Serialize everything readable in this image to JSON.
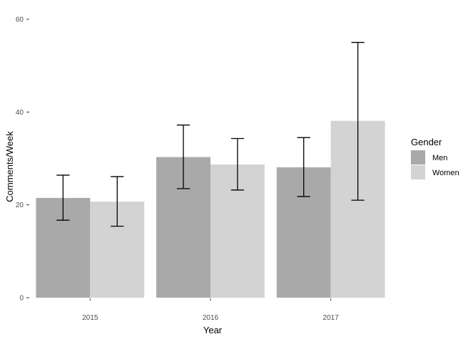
{
  "chart_data": {
    "type": "bar",
    "title": "",
    "xlabel": "Year",
    "ylabel": "Comments/Week",
    "categories": [
      "2015",
      "2016",
      "2017"
    ],
    "ylim": [
      0,
      60
    ],
    "yticks": [
      "0",
      "20",
      "40",
      "60"
    ],
    "grid": false,
    "legend_title": "Gender",
    "legend_position": "right",
    "series": [
      {
        "name": "Men",
        "color": "#a9a9a9",
        "values": [
          21.5,
          30.3,
          28.1
        ],
        "error_low": [
          16.7,
          23.5,
          21.8
        ],
        "error_high": [
          26.4,
          37.2,
          34.5
        ]
      },
      {
        "name": "Women",
        "color": "#d3d3d3",
        "values": [
          20.7,
          28.7,
          38.1
        ],
        "error_low": [
          15.4,
          23.2,
          21.0
        ],
        "error_high": [
          26.1,
          34.3,
          55.0
        ]
      }
    ]
  }
}
